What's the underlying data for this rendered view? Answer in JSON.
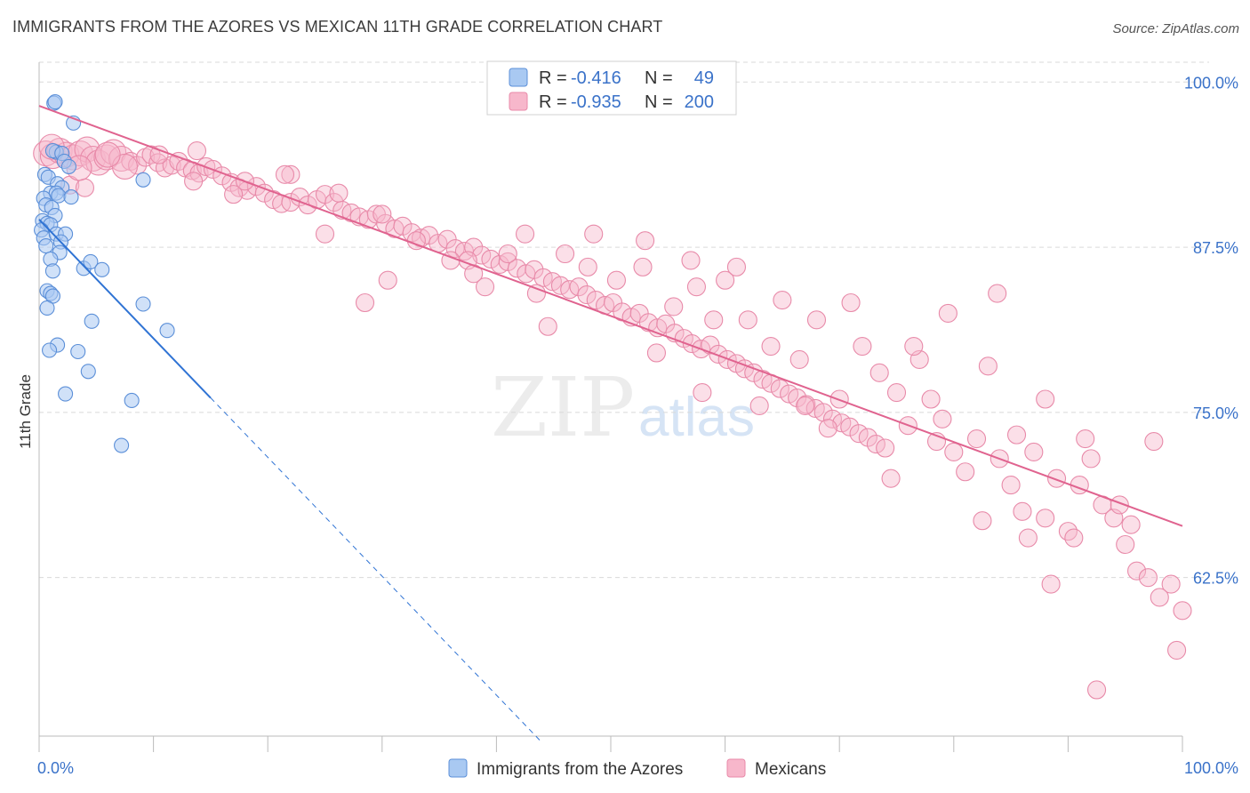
{
  "title": "IMMIGRANTS FROM THE AZORES VS MEXICAN 11TH GRADE CORRELATION CHART",
  "source": "Source: ZipAtlas.com",
  "watermark": {
    "zip": "ZIP",
    "atlas": "atlas"
  },
  "colors": {
    "blue_fill": "#a9c9f2",
    "blue_stroke": "#5b8fd8",
    "blue_line": "#2f73d4",
    "pink_fill": "#f7b7cb",
    "pink_stroke": "#e88aa9",
    "pink_line": "#e0638f",
    "value_text": "#3a72c9",
    "grid": "#d9d9d9"
  },
  "stats_box": {
    "rows": [
      {
        "r_label": "R =",
        "r_value": "-0.416",
        "n_label": "N =",
        "n_value": "49"
      },
      {
        "r_label": "R =",
        "r_value": "-0.935",
        "n_label": "N =",
        "n_value": "200"
      }
    ]
  },
  "bottom_legend": {
    "series1": "Immigrants from the Azores",
    "series2": "Mexicans"
  },
  "chart_data": {
    "type": "scatter",
    "title": "IMMIGRANTS FROM THE AZORES VS MEXICAN 11TH GRADE CORRELATION CHART",
    "xlabel": "",
    "ylabel": "11th Grade",
    "xlim": [
      0,
      100
    ],
    "ylim": [
      50.5,
      101.5
    ],
    "x_tick_labels": [
      "0.0%",
      "100.0%"
    ],
    "y_ticks": [
      62.5,
      75.0,
      87.5,
      100.0
    ],
    "y_tick_labels": [
      "62.5%",
      "75.0%",
      "87.5%",
      "100.0%"
    ],
    "grid": true,
    "series": [
      {
        "name": "Immigrants from the Azores",
        "R": -0.416,
        "N": 49,
        "trend": {
          "x0": 0.0,
          "y0": 89.6,
          "x1": 15.0,
          "y1": 76.1,
          "dash_to_x": 44.0
        },
        "points": [
          [
            1.3,
            98.4
          ],
          [
            1.4,
            98.5
          ],
          [
            3.0,
            96.9
          ],
          [
            1.5,
            94.7
          ],
          [
            1.2,
            94.8
          ],
          [
            2.0,
            94.6
          ],
          [
            2.2,
            94.0
          ],
          [
            2.6,
            93.6
          ],
          [
            0.5,
            93.0
          ],
          [
            0.8,
            92.8
          ],
          [
            1.6,
            92.3
          ],
          [
            2.0,
            92.0
          ],
          [
            1.0,
            91.6
          ],
          [
            1.5,
            91.6
          ],
          [
            1.7,
            91.4
          ],
          [
            2.8,
            91.3
          ],
          [
            0.4,
            91.2
          ],
          [
            0.6,
            90.7
          ],
          [
            1.1,
            90.5
          ],
          [
            1.4,
            89.9
          ],
          [
            0.3,
            89.5
          ],
          [
            0.7,
            89.3
          ],
          [
            1.0,
            89.2
          ],
          [
            0.2,
            88.8
          ],
          [
            0.4,
            88.2
          ],
          [
            1.5,
            88.5
          ],
          [
            2.3,
            88.5
          ],
          [
            1.9,
            87.9
          ],
          [
            0.6,
            87.6
          ],
          [
            1.8,
            87.1
          ],
          [
            1.0,
            86.6
          ],
          [
            1.2,
            85.7
          ],
          [
            3.9,
            85.9
          ],
          [
            4.5,
            86.4
          ],
          [
            5.5,
            85.8
          ],
          [
            0.7,
            84.2
          ],
          [
            1.0,
            84.0
          ],
          [
            1.2,
            83.8
          ],
          [
            0.7,
            82.9
          ],
          [
            9.1,
            83.2
          ],
          [
            4.6,
            81.9
          ],
          [
            11.2,
            81.2
          ],
          [
            1.6,
            80.1
          ],
          [
            0.9,
            79.7
          ],
          [
            3.4,
            79.6
          ],
          [
            4.3,
            78.1
          ],
          [
            2.3,
            76.4
          ],
          [
            8.1,
            75.9
          ],
          [
            7.2,
            72.5
          ],
          [
            9.1,
            92.6
          ]
        ]
      },
      {
        "name": "Mexicans",
        "R": -0.935,
        "N": 200,
        "trend": {
          "x0": 0.0,
          "y0": 98.2,
          "x1": 100.0,
          "y1": 66.4
        },
        "points": [
          [
            0.6,
            94.6
          ],
          [
            1.2,
            94.4
          ],
          [
            1.8,
            94.8
          ],
          [
            2.4,
            94.5
          ],
          [
            3.0,
            94.3
          ],
          [
            3.6,
            94.6
          ],
          [
            4.2,
            94.9
          ],
          [
            4.7,
            94.2
          ],
          [
            5.2,
            93.9
          ],
          [
            5.9,
            94.3
          ],
          [
            6.5,
            94.7
          ],
          [
            7.2,
            94.2
          ],
          [
            8.0,
            94.0
          ],
          [
            8.6,
            93.7
          ],
          [
            9.3,
            94.3
          ],
          [
            9.8,
            94.5
          ],
          [
            10.4,
            93.9
          ],
          [
            11.0,
            93.5
          ],
          [
            11.6,
            93.7
          ],
          [
            12.2,
            94.0
          ],
          [
            12.8,
            93.5
          ],
          [
            13.4,
            93.3
          ],
          [
            14.0,
            93.1
          ],
          [
            14.6,
            93.6
          ],
          [
            2.7,
            92.2
          ],
          [
            4.0,
            92.0
          ],
          [
            1.1,
            95.1
          ],
          [
            13.8,
            94.8
          ],
          [
            15.2,
            93.4
          ],
          [
            16.0,
            92.9
          ],
          [
            16.8,
            92.4
          ],
          [
            17.5,
            92.0
          ],
          [
            18.2,
            91.8
          ],
          [
            19.0,
            92.1
          ],
          [
            19.7,
            91.6
          ],
          [
            20.5,
            91.1
          ],
          [
            21.2,
            90.8
          ],
          [
            22.0,
            90.9
          ],
          [
            22.8,
            91.3
          ],
          [
            23.5,
            90.7
          ],
          [
            24.3,
            91.1
          ],
          [
            25.0,
            91.5
          ],
          [
            25.8,
            90.9
          ],
          [
            26.5,
            90.3
          ],
          [
            27.3,
            90.1
          ],
          [
            28.0,
            89.8
          ],
          [
            28.8,
            89.6
          ],
          [
            29.5,
            90.0
          ],
          [
            30.3,
            89.3
          ],
          [
            31.1,
            88.9
          ],
          [
            31.8,
            89.1
          ],
          [
            32.6,
            88.6
          ],
          [
            33.4,
            88.2
          ],
          [
            34.1,
            88.4
          ],
          [
            34.9,
            87.8
          ],
          [
            35.7,
            88.1
          ],
          [
            36.4,
            87.4
          ],
          [
            37.2,
            87.2
          ],
          [
            38.0,
            87.5
          ],
          [
            38.7,
            86.9
          ],
          [
            39.5,
            86.6
          ],
          [
            40.3,
            86.2
          ],
          [
            41.0,
            86.4
          ],
          [
            41.8,
            85.9
          ],
          [
            42.6,
            85.5
          ],
          [
            43.3,
            85.8
          ],
          [
            44.1,
            85.2
          ],
          [
            44.9,
            84.9
          ],
          [
            45.6,
            84.6
          ],
          [
            46.4,
            84.3
          ],
          [
            47.2,
            84.5
          ],
          [
            47.9,
            83.9
          ],
          [
            48.7,
            83.5
          ],
          [
            49.5,
            83.1
          ],
          [
            50.2,
            83.3
          ],
          [
            51.0,
            82.6
          ],
          [
            51.8,
            82.2
          ],
          [
            52.5,
            82.5
          ],
          [
            53.3,
            81.8
          ],
          [
            54.1,
            81.4
          ],
          [
            54.8,
            81.7
          ],
          [
            55.6,
            81.0
          ],
          [
            56.4,
            80.6
          ],
          [
            57.1,
            80.2
          ],
          [
            57.9,
            79.8
          ],
          [
            58.7,
            80.1
          ],
          [
            59.4,
            79.4
          ],
          [
            60.2,
            79.0
          ],
          [
            61.0,
            78.7
          ],
          [
            61.7,
            78.3
          ],
          [
            62.5,
            78.0
          ],
          [
            63.3,
            77.5
          ],
          [
            64.0,
            77.2
          ],
          [
            64.8,
            76.8
          ],
          [
            65.6,
            76.4
          ],
          [
            66.3,
            76.1
          ],
          [
            67.1,
            75.6
          ],
          [
            67.9,
            75.3
          ],
          [
            68.6,
            75.0
          ],
          [
            69.4,
            74.5
          ],
          [
            70.2,
            74.2
          ],
          [
            70.9,
            73.9
          ],
          [
            71.7,
            73.4
          ],
          [
            72.5,
            73.1
          ],
          [
            73.2,
            72.6
          ],
          [
            74.0,
            72.3
          ],
          [
            7.5,
            93.6
          ],
          [
            18.0,
            92.5
          ],
          [
            22.0,
            93.0
          ],
          [
            26.2,
            91.6
          ],
          [
            30.0,
            90.0
          ],
          [
            33.0,
            88.0
          ],
          [
            37.5,
            86.5
          ],
          [
            39.0,
            84.5
          ],
          [
            41.0,
            87.0
          ],
          [
            43.5,
            84.0
          ],
          [
            46.0,
            87.0
          ],
          [
            48.0,
            86.0
          ],
          [
            50.5,
            85.0
          ],
          [
            52.8,
            86.0
          ],
          [
            55.5,
            83.0
          ],
          [
            57.5,
            84.5
          ],
          [
            59.0,
            82.0
          ],
          [
            60.0,
            85.0
          ],
          [
            62.0,
            82.0
          ],
          [
            64.0,
            80.0
          ],
          [
            66.5,
            79.0
          ],
          [
            68.0,
            82.0
          ],
          [
            70.0,
            76.0
          ],
          [
            72.0,
            80.0
          ],
          [
            73.5,
            78.0
          ],
          [
            75.0,
            76.5
          ],
          [
            76.0,
            74.0
          ],
          [
            77.0,
            79.0
          ],
          [
            78.0,
            76.0
          ],
          [
            79.0,
            74.5
          ],
          [
            80.0,
            72.0
          ],
          [
            81.0,
            70.5
          ],
          [
            82.0,
            73.0
          ],
          [
            83.0,
            78.5
          ],
          [
            84.0,
            71.5
          ],
          [
            85.0,
            69.5
          ],
          [
            86.0,
            67.5
          ],
          [
            87.0,
            72.0
          ],
          [
            88.0,
            76.0
          ],
          [
            89.0,
            70.0
          ],
          [
            90.0,
            66.0
          ],
          [
            91.0,
            69.5
          ],
          [
            92.0,
            71.5
          ],
          [
            93.0,
            68.0
          ],
          [
            94.0,
            67.0
          ],
          [
            95.0,
            65.0
          ],
          [
            96.0,
            63.0
          ],
          [
            97.0,
            62.5
          ],
          [
            98.0,
            61.0
          ],
          [
            99.0,
            62.0
          ],
          [
            100.0,
            60.0
          ],
          [
            99.5,
            57.0
          ],
          [
            92.5,
            54.0
          ],
          [
            88.5,
            62.0
          ],
          [
            90.5,
            65.5
          ],
          [
            94.5,
            68.0
          ],
          [
            97.5,
            72.8
          ],
          [
            85.5,
            73.3
          ],
          [
            83.8,
            84.0
          ],
          [
            79.5,
            82.5
          ],
          [
            76.5,
            80.0
          ],
          [
            71.0,
            83.3
          ],
          [
            65.0,
            83.5
          ],
          [
            61.0,
            86.0
          ],
          [
            57.0,
            86.5
          ],
          [
            53.0,
            88.0
          ],
          [
            48.5,
            88.5
          ],
          [
            42.5,
            88.5
          ],
          [
            36.0,
            86.5
          ],
          [
            30.5,
            85.0
          ],
          [
            25.0,
            88.5
          ],
          [
            21.5,
            93.0
          ],
          [
            17.0,
            91.5
          ],
          [
            13.5,
            92.5
          ],
          [
            10.5,
            94.5
          ],
          [
            6.0,
            94.5
          ],
          [
            3.5,
            93.5
          ],
          [
            28.5,
            83.3
          ],
          [
            38.0,
            85.5
          ],
          [
            44.5,
            81.5
          ],
          [
            54.0,
            79.5
          ],
          [
            58.0,
            76.5
          ],
          [
            63.0,
            75.5
          ],
          [
            67.0,
            75.5
          ],
          [
            69.0,
            73.8
          ],
          [
            74.5,
            70.0
          ],
          [
            78.5,
            72.8
          ],
          [
            82.5,
            66.8
          ],
          [
            86.5,
            65.5
          ],
          [
            88.0,
            67.0
          ],
          [
            91.5,
            73.0
          ],
          [
            95.5,
            66.5
          ]
        ]
      }
    ]
  }
}
